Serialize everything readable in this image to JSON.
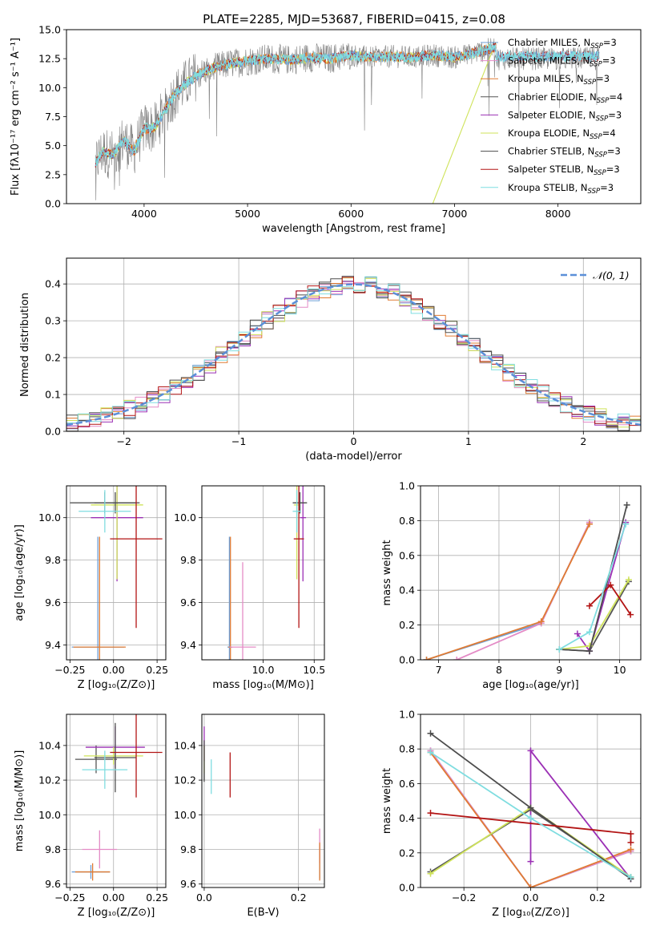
{
  "colors": {
    "chabrier_miles": "#6ea0d8",
    "salpeter_miles": "#e48bc6",
    "kroupa_miles": "#e07b33",
    "chabrier_elodie": "#555555",
    "salpeter_elodie": "#9b30b5",
    "kroupa_elodie": "#cfe35a",
    "chabrier_stelib": "#4d4d4d",
    "salpeter_stelib": "#b31515",
    "kroupa_stelib": "#7fdde0",
    "data_gray": "#808080",
    "normal_dash": "#5b8fd8"
  },
  "chart_data": [
    {
      "type": "line",
      "title": "PLATE=2285, MJD=53687, FIBERID=0415, z=0.08",
      "xlabel": "wavelength [Angstrom, rest frame]",
      "ylabel": "Flux [fλ10⁻¹⁷ erg cm⁻² s⁻¹ A⁻¹]",
      "xlim": [
        3250,
        8800
      ],
      "ylim": [
        0,
        15
      ],
      "xticks": [
        4000,
        5000,
        6000,
        7000,
        8000
      ],
      "yticks": [
        0.0,
        2.5,
        5.0,
        7.5,
        10.0,
        12.5,
        15.0
      ],
      "legend": [
        {
          "label": "Chabrier MILES, N",
          "sub": "SSP",
          "suffix": "=3",
          "color": "chabrier_miles"
        },
        {
          "label": "Salpeter MILES, N",
          "sub": "SSP",
          "suffix": "=3",
          "color": "salpeter_miles"
        },
        {
          "label": "Kroupa MILES, N",
          "sub": "SSP",
          "suffix": "=3",
          "color": "kroupa_miles"
        },
        {
          "label": "Chabrier ELODIE, N",
          "sub": "SSP",
          "suffix": "=4",
          "color": "chabrier_elodie"
        },
        {
          "label": "Salpeter ELODIE, N",
          "sub": "SSP",
          "suffix": "=3",
          "color": "salpeter_elodie"
        },
        {
          "label": "Kroupa ELODIE, N",
          "sub": "SSP",
          "suffix": "=4",
          "color": "kroupa_elodie"
        },
        {
          "label": "Chabrier STELIB, N",
          "sub": "SSP",
          "suffix": "=3",
          "color": "chabrier_stelib"
        },
        {
          "label": "Salpeter STELIB, N",
          "sub": "SSP",
          "suffix": "=3",
          "color": "salpeter_stelib"
        },
        {
          "label": "Kroupa STELIB, N",
          "sub": "SSP",
          "suffix": "=3",
          "color": "kroupa_stelib"
        }
      ],
      "legend_position": "upper right",
      "continuum": {
        "x": [
          3530,
          3600,
          3700,
          3800,
          3900,
          4000,
          4100,
          4200,
          4300,
          4400,
          4500,
          4600,
          4800,
          5000,
          5200,
          5400,
          5600,
          5800,
          6000,
          6200,
          6400,
          6600,
          6800,
          7000,
          7200,
          7400
        ],
        "y": [
          3.5,
          4.5,
          4.2,
          5.5,
          4.5,
          6.5,
          6.5,
          8.0,
          9.5,
          10.3,
          11.0,
          11.5,
          12.0,
          12.3,
          12.5,
          12.4,
          12.6,
          12.5,
          12.8,
          12.6,
          12.7,
          12.6,
          12.8,
          12.6,
          13.0,
          13.5
        ]
      }
    },
    {
      "type": "line",
      "xlabel": "(data-model)/error",
      "ylabel": "Normed distribution",
      "xlim": [
        -2.5,
        2.5
      ],
      "ylim": [
        0,
        0.47
      ],
      "xticks": [
        -2,
        -1,
        0,
        1,
        2
      ],
      "yticks": [
        0.0,
        0.1,
        0.2,
        0.3,
        0.4
      ],
      "grid": true,
      "legend": [
        "𝒩(0, 1)"
      ],
      "legend_position": "upper right"
    },
    {
      "type": "scatter",
      "xlabel": "Z [log₁₀(Z/Z⊙)]",
      "ylabel": "age  [log₁₀(age/yr)]",
      "xlim": [
        -0.27,
        0.3
      ],
      "ylim": [
        9.33,
        10.15
      ],
      "xticks": [
        -0.25,
        0.0,
        0.25
      ],
      "yticks": [
        9.4,
        9.6,
        9.8,
        10.0
      ],
      "grid": true,
      "points": [
        {
          "series": "chabrier_miles",
          "x": -0.09,
          "y": 9.39,
          "xerr": 0.15,
          "yerr": 0.52
        },
        {
          "series": "kroupa_miles",
          "x": -0.08,
          "y": 9.39,
          "xerr": 0.15,
          "yerr": 0.52
        },
        {
          "series": "chabrier_elodie",
          "x": -0.05,
          "y": 10.07,
          "xerr": 0.2,
          "yerr": 0.05
        },
        {
          "series": "salpeter_elodie",
          "x": 0.02,
          "y": 10.0,
          "xerr": 0.15,
          "yerr": 0.3
        },
        {
          "series": "kroupa_elodie",
          "x": 0.02,
          "y": 10.06,
          "xerr": 0.15,
          "yerr": 0.35
        },
        {
          "series": "chabrier_stelib",
          "x": 0.01,
          "y": 10.07,
          "xerr": 0.12,
          "yerr": 0.05
        },
        {
          "series": "salpeter_stelib",
          "x": 0.13,
          "y": 9.9,
          "xerr": 0.15,
          "yerr": 0.42
        },
        {
          "series": "kroupa_stelib",
          "x": -0.05,
          "y": 10.03,
          "xerr": 0.15,
          "yerr": 0.1
        }
      ]
    },
    {
      "type": "scatter",
      "xlabel": "mass [log₁₀(M/M⊙)]",
      "xlim": [
        9.4,
        10.6
      ],
      "ylim": [
        9.33,
        10.15
      ],
      "xticks": [
        10.0,
        10.5
      ],
      "yticks": [
        9.4,
        9.6,
        9.8,
        10.0
      ],
      "grid": true,
      "points": [
        {
          "series": "chabrier_miles",
          "x": 9.67,
          "y": 9.39,
          "xerr": 0.02,
          "yerr": 0.52
        },
        {
          "series": "kroupa_miles",
          "x": 9.68,
          "y": 9.39,
          "xerr": 0.02,
          "yerr": 0.52
        },
        {
          "series": "salpeter_miles",
          "x": 9.8,
          "y": 9.39,
          "xerr": 0.13,
          "yerr": 0.4
        },
        {
          "series": "chabrier_elodie",
          "x": 10.36,
          "y": 10.07,
          "xerr": 0.05,
          "yerr": 0.05
        },
        {
          "series": "salpeter_elodie",
          "x": 10.39,
          "y": 10.0,
          "xerr": 0.03,
          "yerr": 0.3
        },
        {
          "series": "kroupa_elodie",
          "x": 10.33,
          "y": 10.06,
          "xerr": 0.03,
          "yerr": 0.35
        },
        {
          "series": "chabrier_stelib",
          "x": 10.36,
          "y": 10.07,
          "xerr": 0.07,
          "yerr": 0.05
        },
        {
          "series": "salpeter_stelib",
          "x": 10.35,
          "y": 9.9,
          "xerr": 0.05,
          "yerr": 0.42
        },
        {
          "series": "kroupa_stelib",
          "x": 10.33,
          "y": 10.03,
          "xerr": 0.04,
          "yerr": 0.1
        }
      ]
    },
    {
      "type": "line",
      "xlabel": "age  [log₁₀(age/yr)]",
      "ylabel": "mass weight",
      "xlim": [
        6.7,
        10.35
      ],
      "ylim": [
        0,
        1
      ],
      "xticks": [
        7,
        8,
        9,
        10
      ],
      "yticks": [
        0.0,
        0.2,
        0.4,
        0.6,
        0.8,
        1.0
      ],
      "grid": true,
      "series": [
        {
          "name": "chabrier_miles",
          "x": [
            6.8,
            8.7,
            9.5
          ],
          "y": [
            0.0,
            0.21,
            0.79
          ]
        },
        {
          "name": "salpeter_miles",
          "x": [
            7.3,
            8.7,
            9.5
          ],
          "y": [
            0.0,
            0.21,
            0.79
          ]
        },
        {
          "name": "kroupa_miles",
          "x": [
            6.8,
            8.7,
            9.5
          ],
          "y": [
            0.0,
            0.22,
            0.78
          ]
        },
        {
          "name": "chabrier_elodie",
          "x": [
            9.0,
            9.5,
            10.15
          ],
          "y": [
            0.06,
            0.05,
            0.45
          ]
        },
        {
          "name": "salpeter_elodie",
          "x": [
            9.3,
            9.5,
            10.1
          ],
          "y": [
            0.15,
            0.05,
            0.79
          ]
        },
        {
          "name": "kroupa_elodie",
          "x": [
            9.0,
            9.5,
            10.15
          ],
          "y": [
            0.06,
            0.08,
            0.46
          ]
        },
        {
          "name": "chabrier_stelib",
          "x": [
            9.0,
            9.5,
            10.12
          ],
          "y": [
            0.06,
            0.05,
            0.89
          ]
        },
        {
          "name": "salpeter_stelib",
          "x": [
            9.5,
            9.85,
            10.18
          ],
          "y": [
            0.31,
            0.43,
            0.26
          ]
        },
        {
          "name": "kroupa_stelib",
          "x": [
            9.0,
            9.5,
            10.1
          ],
          "y": [
            0.06,
            0.16,
            0.78
          ]
        }
      ]
    },
    {
      "type": "scatter",
      "xlabel": "Z [log₁₀(Z/Z⊙)]",
      "ylabel": "mass [log₁₀(M/M⊙)]",
      "xlim": [
        -0.27,
        0.3
      ],
      "ylim": [
        9.58,
        10.58
      ],
      "xticks": [
        -0.25,
        0.0,
        0.25
      ],
      "yticks": [
        9.6,
        9.8,
        10.0,
        10.2,
        10.4
      ],
      "grid": true,
      "points": [
        {
          "series": "chabrier_miles",
          "x": -0.13,
          "y": 9.67,
          "xerr": 0.11,
          "yerr": 0.04
        },
        {
          "series": "kroupa_miles",
          "x": -0.12,
          "y": 9.67,
          "xerr": 0.1,
          "yerr": 0.05
        },
        {
          "series": "salpeter_miles",
          "x": -0.08,
          "y": 9.8,
          "xerr": 0.1,
          "yerr": 0.11
        },
        {
          "series": "chabrier_elodie",
          "x": -0.1,
          "y": 10.32,
          "xerr": 0.12,
          "yerr": 0.08
        },
        {
          "series": "salpeter_elodie",
          "x": 0.01,
          "y": 10.39,
          "xerr": 0.17,
          "yerr": 0.12
        },
        {
          "series": "kroupa_elodie",
          "x": 0.0,
          "y": 10.34,
          "xerr": 0.17,
          "yerr": 0.05
        },
        {
          "series": "chabrier_stelib",
          "x": 0.01,
          "y": 10.33,
          "xerr": 0.12,
          "yerr": 0.2
        },
        {
          "series": "salpeter_stelib",
          "x": 0.13,
          "y": 10.36,
          "xerr": 0.15,
          "yerr": 0.26
        },
        {
          "series": "kroupa_stelib",
          "x": -0.05,
          "y": 10.26,
          "xerr": 0.13,
          "yerr": 0.11
        }
      ]
    },
    {
      "type": "scatter",
      "xlabel": "E(B-V)",
      "xlim": [
        -0.005,
        0.255
      ],
      "ylim": [
        9.58,
        10.58
      ],
      "xticks": [
        0.0,
        0.2
      ],
      "yticks": [
        9.6,
        9.8,
        10.0,
        10.2,
        10.4
      ],
      "grid": true,
      "points": [
        {
          "series": "chabrier_miles",
          "x": 0.245,
          "y": 9.73,
          "yerr": 0.1
        },
        {
          "series": "salpeter_miles",
          "x": 0.245,
          "y": 9.82,
          "yerr": 0.1
        },
        {
          "series": "kroupa_miles",
          "x": 0.245,
          "y": 9.73,
          "yerr": 0.11
        },
        {
          "series": "chabrier_elodie",
          "x": 0.0,
          "y": 10.3,
          "yerr": 0.1
        },
        {
          "series": "salpeter_elodie",
          "x": 0.0,
          "y": 10.41,
          "yerr": 0.1
        },
        {
          "series": "kroupa_elodie",
          "x": 0.0,
          "y": 10.32,
          "yerr": 0.08
        },
        {
          "series": "chabrier_stelib",
          "x": 0.0,
          "y": 10.31,
          "yerr": 0.12
        },
        {
          "series": "salpeter_stelib",
          "x": 0.055,
          "y": 10.23,
          "yerr": 0.13
        },
        {
          "series": "kroupa_stelib",
          "x": 0.015,
          "y": 10.22,
          "yerr": 0.1
        }
      ]
    },
    {
      "type": "line",
      "xlabel": "Z [log₁₀(Z/Z⊙)]",
      "ylabel": "mass weight",
      "xlim": [
        -0.33,
        0.33
      ],
      "ylim": [
        0,
        1
      ],
      "xticks": [
        -0.2,
        0.0,
        0.2
      ],
      "yticks": [
        0.0,
        0.2,
        0.4,
        0.6,
        0.8,
        1.0
      ],
      "grid": true,
      "series": [
        {
          "name": "chabrier_miles",
          "x": [
            -0.3,
            0.0,
            0.3
          ],
          "y": [
            0.79,
            0.0,
            0.21
          ]
        },
        {
          "name": "salpeter_miles",
          "x": [
            -0.3,
            0.0,
            0.3
          ],
          "y": [
            0.79,
            0.0,
            0.21
          ]
        },
        {
          "name": "kroupa_miles",
          "x": [
            -0.3,
            0.0,
            0.3
          ],
          "y": [
            0.78,
            0.0,
            0.22
          ]
        },
        {
          "name": "chabrier_elodie",
          "x": [
            -0.3,
            0.0,
            0.3
          ],
          "y": [
            0.09,
            0.45,
            0.06
          ]
        },
        {
          "name": "salpeter_elodie",
          "x": [
            0.0,
            0.0,
            0.3
          ],
          "y": [
            0.15,
            0.79,
            0.05
          ]
        },
        {
          "name": "kroupa_elodie",
          "x": [
            -0.3,
            0.0,
            0.3
          ],
          "y": [
            0.08,
            0.46,
            0.06
          ]
        },
        {
          "name": "chabrier_stelib",
          "x": [
            -0.3,
            0.0,
            0.3
          ],
          "y": [
            0.89,
            0.46,
            0.05
          ]
        },
        {
          "name": "salpeter_stelib",
          "x": [
            -0.3,
            0.3,
            0.3
          ],
          "y": [
            0.43,
            0.31,
            0.26
          ]
        },
        {
          "name": "kroupa_stelib",
          "x": [
            -0.3,
            0.0,
            0.3
          ],
          "y": [
            0.78,
            0.4,
            0.06
          ]
        }
      ]
    }
  ]
}
